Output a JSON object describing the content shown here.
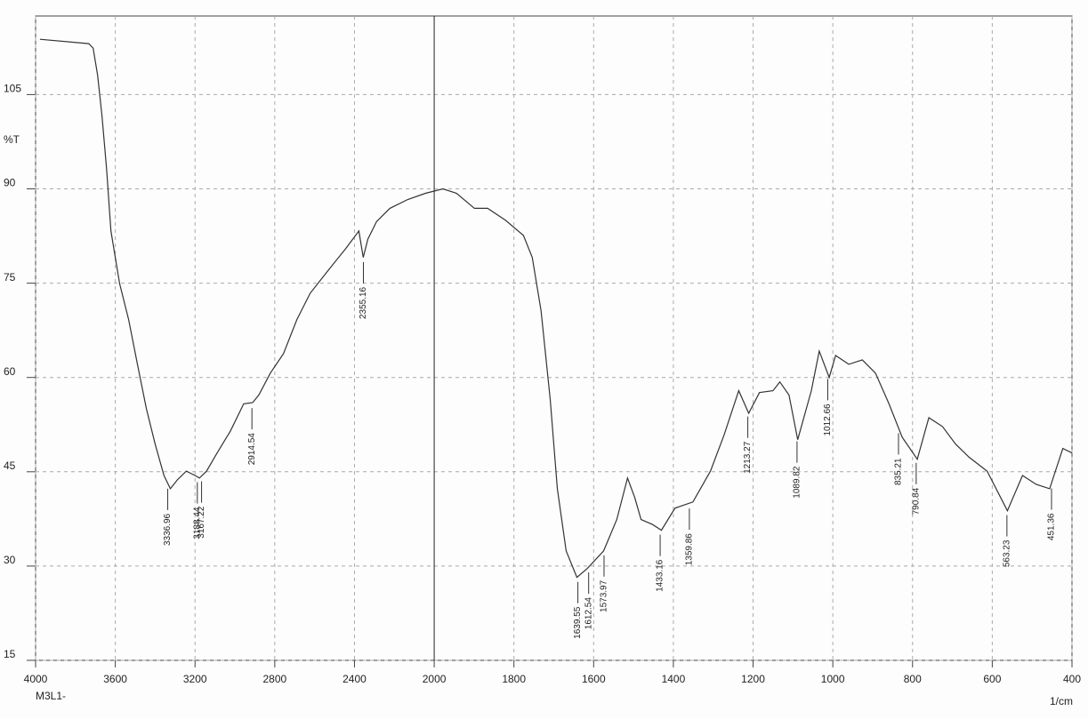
{
  "chart_data": {
    "type": "line",
    "y_label": "%T",
    "x_label": "1/cm",
    "sample": "M3L1-",
    "xlim": [
      4000,
      400
    ],
    "x_scale_break": 2000,
    "x_scale_zoom": 2,
    "xticks": [
      4000,
      3600,
      3200,
      2800,
      2400,
      2000,
      1800,
      1600,
      1400,
      1200,
      1000,
      800,
      600,
      400
    ],
    "ylim": [
      15,
      117.5
    ],
    "yticks": [
      15,
      30,
      45,
      60,
      75,
      90,
      105
    ],
    "grid": true,
    "color": "#333333",
    "x": [
      3978,
      3733,
      3711,
      3689,
      3667,
      3644,
      3622,
      3600,
      3578,
      3533,
      3489,
      3444,
      3400,
      3356,
      3324,
      3289,
      3244,
      3200,
      3178,
      3142,
      3089,
      3022,
      2956,
      2911,
      2880,
      2822,
      2756,
      2689,
      2622,
      2533,
      2444,
      2378,
      2356,
      2333,
      2289,
      2222,
      2133,
      2044,
      1978,
      1944,
      1899,
      1866,
      1821,
      1776,
      1754,
      1732,
      1709,
      1691,
      1669,
      1642,
      1616,
      1575,
      1542,
      1515,
      1497,
      1481,
      1452,
      1430,
      1396,
      1351,
      1307,
      1273,
      1236,
      1211,
      1184,
      1150,
      1133,
      1110,
      1088,
      1054,
      1034,
      1009,
      993,
      960,
      926,
      893,
      859,
      826,
      788,
      759,
      725,
      692,
      658,
      613,
      562,
      524,
      490,
      456,
      423,
      400
    ],
    "values": [
      113.8,
      113.1,
      112.4,
      108.1,
      101.7,
      93.2,
      83.3,
      79.1,
      74.9,
      69.2,
      62.1,
      55,
      49.4,
      44.4,
      42.3,
      43.7,
      45.1,
      44.4,
      44,
      45.1,
      48,
      51.5,
      55.8,
      56,
      57.2,
      60.7,
      63.8,
      69.2,
      73.4,
      77,
      80.5,
      83.3,
      79.1,
      82,
      84.8,
      86.9,
      88.3,
      89.3,
      90,
      89.3,
      86.9,
      86.9,
      85,
      82.6,
      79.1,
      70.6,
      56.5,
      42.3,
      32.4,
      28.2,
      29.6,
      32.4,
      37.4,
      44,
      40.9,
      37.4,
      36.6,
      35.7,
      39.2,
      40.2,
      45.1,
      50.8,
      57.9,
      54.3,
      57.6,
      57.9,
      59.3,
      57.2,
      50.1,
      57.9,
      64.2,
      60,
      63.5,
      62.1,
      62.8,
      60.7,
      55.8,
      50.5,
      47,
      53.6,
      52.2,
      49.4,
      47.3,
      45.1,
      38.8,
      44.4,
      43,
      42.3,
      48.7,
      48
    ],
    "peaks": [
      3336.96,
      3188.44,
      3167.22,
      2914.54,
      2355.16,
      1639.55,
      1612.54,
      1573.97,
      1433.16,
      1359.86,
      1213.27,
      1089.82,
      1012.66,
      835.21,
      790.84,
      563.23,
      451.36
    ]
  }
}
